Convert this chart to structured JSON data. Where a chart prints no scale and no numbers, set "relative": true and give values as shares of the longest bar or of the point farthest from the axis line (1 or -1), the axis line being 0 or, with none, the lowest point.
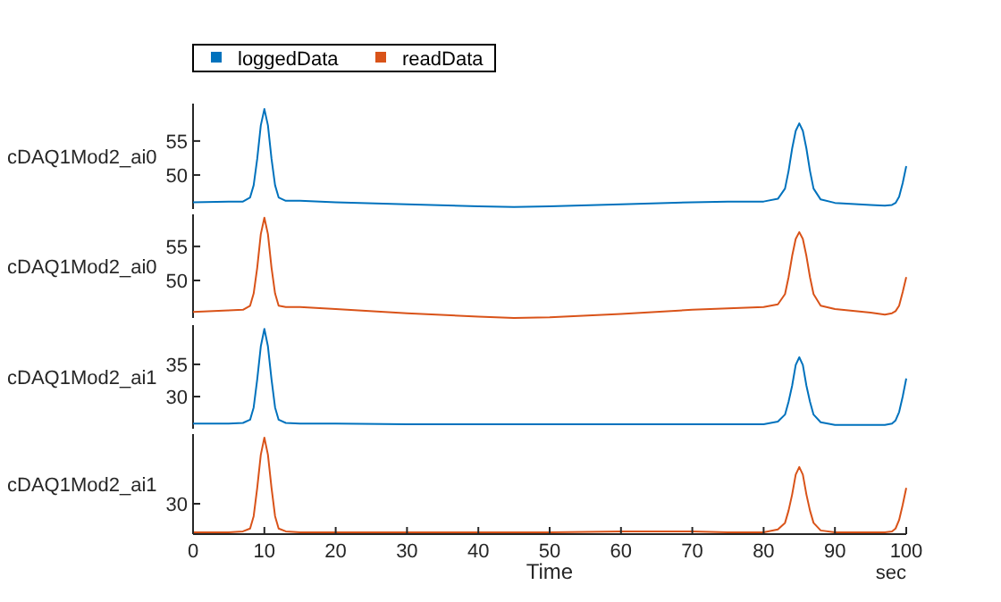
{
  "chart_data": [
    {
      "type": "line",
      "ylabel": "cDAQ1Mod2_ai0",
      "xlim": [
        0,
        100
      ],
      "ylim": [
        45,
        60.5
      ],
      "yticks": [
        50,
        55
      ],
      "tick_labels": "y",
      "legend": "top",
      "x": [
        0,
        5,
        7,
        8,
        8.5,
        9,
        9.5,
        10,
        10.5,
        11,
        11.5,
        12,
        13,
        15,
        20,
        30,
        40,
        45,
        50,
        60,
        70,
        75,
        80,
        82,
        83,
        83.5,
        84,
        84.5,
        85,
        85.5,
        86,
        86.5,
        87,
        88,
        90,
        95,
        97,
        98,
        98.5,
        99,
        99.5,
        100
      ],
      "series": [
        {
          "name": "loggedData",
          "color": "#0072bd",
          "values": [
            46.0,
            46.1,
            46.1,
            46.7,
            48.5,
            52.4,
            57.3,
            59.7,
            57.3,
            52.4,
            48.5,
            46.7,
            46.2,
            46.2,
            46.0,
            45.7,
            45.4,
            45.3,
            45.4,
            45.7,
            46.0,
            46.1,
            46.1,
            46.5,
            48.0,
            50.6,
            53.9,
            56.5,
            57.6,
            56.5,
            53.9,
            50.6,
            48.0,
            46.4,
            45.9,
            45.6,
            45.5,
            45.6,
            45.9,
            46.8,
            48.8,
            51.3
          ]
        }
      ]
    },
    {
      "type": "line",
      "ylabel": "cDAQ1Mod2_ai0",
      "xlim": [
        0,
        100
      ],
      "ylim": [
        44.5,
        59.7
      ],
      "yticks": [
        50,
        55
      ],
      "tick_labels": "y",
      "legend": "top",
      "x": [
        0,
        5,
        7,
        8,
        8.5,
        9,
        9.5,
        10,
        10.5,
        11,
        11.5,
        12,
        13,
        15,
        20,
        30,
        40,
        45,
        50,
        60,
        70,
        75,
        80,
        82,
        83,
        83.5,
        84,
        84.5,
        85,
        85.5,
        86,
        86.5,
        87,
        88,
        90,
        95,
        97,
        98,
        98.5,
        99,
        99.5,
        100
      ],
      "series": [
        {
          "name": "readData",
          "color": "#d95319",
          "values": [
            45.4,
            45.6,
            45.7,
            46.3,
            48.1,
            51.9,
            56.8,
            59.2,
            56.8,
            51.9,
            48.1,
            46.3,
            46.1,
            46.1,
            45.8,
            45.2,
            44.7,
            44.5,
            44.6,
            45.1,
            45.7,
            45.9,
            46.1,
            46.5,
            48.0,
            50.5,
            53.6,
            56.1,
            57.1,
            56.1,
            53.6,
            50.5,
            48.0,
            46.3,
            45.8,
            45.3,
            45.0,
            45.2,
            45.5,
            46.3,
            48.3,
            50.5
          ]
        }
      ]
    },
    {
      "type": "line",
      "ylabel": "cDAQ1Mod2_ai1",
      "xlim": [
        0,
        100
      ],
      "ylim": [
        25,
        41.1
      ],
      "yticks": [
        30,
        35
      ],
      "tick_labels": "y",
      "x": [
        0,
        5,
        7,
        8,
        8.5,
        9,
        9.5,
        10,
        10.5,
        11,
        11.5,
        12,
        13,
        15,
        20,
        30,
        40,
        45,
        50,
        60,
        70,
        75,
        80,
        82,
        83,
        83.5,
        84,
        84.5,
        85,
        85.5,
        86,
        86.5,
        87,
        88,
        90,
        95,
        97,
        98,
        98.5,
        99,
        99.5,
        100
      ],
      "series": [
        {
          "color": "#0072bd",
          "values": [
            25.8,
            25.8,
            25.9,
            26.4,
            28.3,
            32.7,
            37.8,
            40.5,
            37.8,
            32.7,
            28.3,
            26.4,
            25.9,
            25.8,
            25.8,
            25.7,
            25.7,
            25.7,
            25.7,
            25.7,
            25.7,
            25.7,
            25.7,
            26.1,
            27.2,
            29.2,
            31.7,
            34.9,
            36.1,
            34.9,
            31.7,
            29.2,
            27.2,
            26.0,
            25.6,
            25.6,
            25.6,
            25.8,
            26.3,
            27.6,
            30.0,
            32.8
          ]
        }
      ]
    },
    {
      "type": "line",
      "ylabel": "cDAQ1Mod2_ai1",
      "xlabel": "Time",
      "annotations": [
        "sec",
        "30"
      ],
      "relative": true,
      "xlim": [
        0,
        100
      ],
      "xticks": [
        0,
        10,
        20,
        30,
        40,
        50,
        60,
        70,
        80,
        90,
        100
      ],
      "x": [
        0,
        5,
        7,
        8,
        8.5,
        9,
        9.5,
        10,
        10.5,
        11,
        11.5,
        12,
        13,
        15,
        20,
        30,
        40,
        45,
        50,
        60,
        70,
        75,
        80,
        82,
        83,
        83.5,
        84,
        84.5,
        85,
        85.5,
        86,
        86.5,
        87,
        88,
        90,
        95,
        97,
        98,
        98.5,
        99,
        99.5,
        100
      ],
      "series": [
        {
          "color": "#d95319",
          "values": [
            0,
            0,
            0.01,
            0.04,
            0.17,
            0.47,
            0.82,
            1,
            0.82,
            0.47,
            0.17,
            0.04,
            0.01,
            0,
            0,
            0,
            0,
            0,
            0,
            0.01,
            0.01,
            0,
            0,
            0.03,
            0.1,
            0.23,
            0.4,
            0.61,
            0.69,
            0.61,
            0.4,
            0.23,
            0.1,
            0.02,
            0,
            0,
            0,
            0.01,
            0.04,
            0.13,
            0.29,
            0.47
          ]
        }
      ]
    }
  ]
}
